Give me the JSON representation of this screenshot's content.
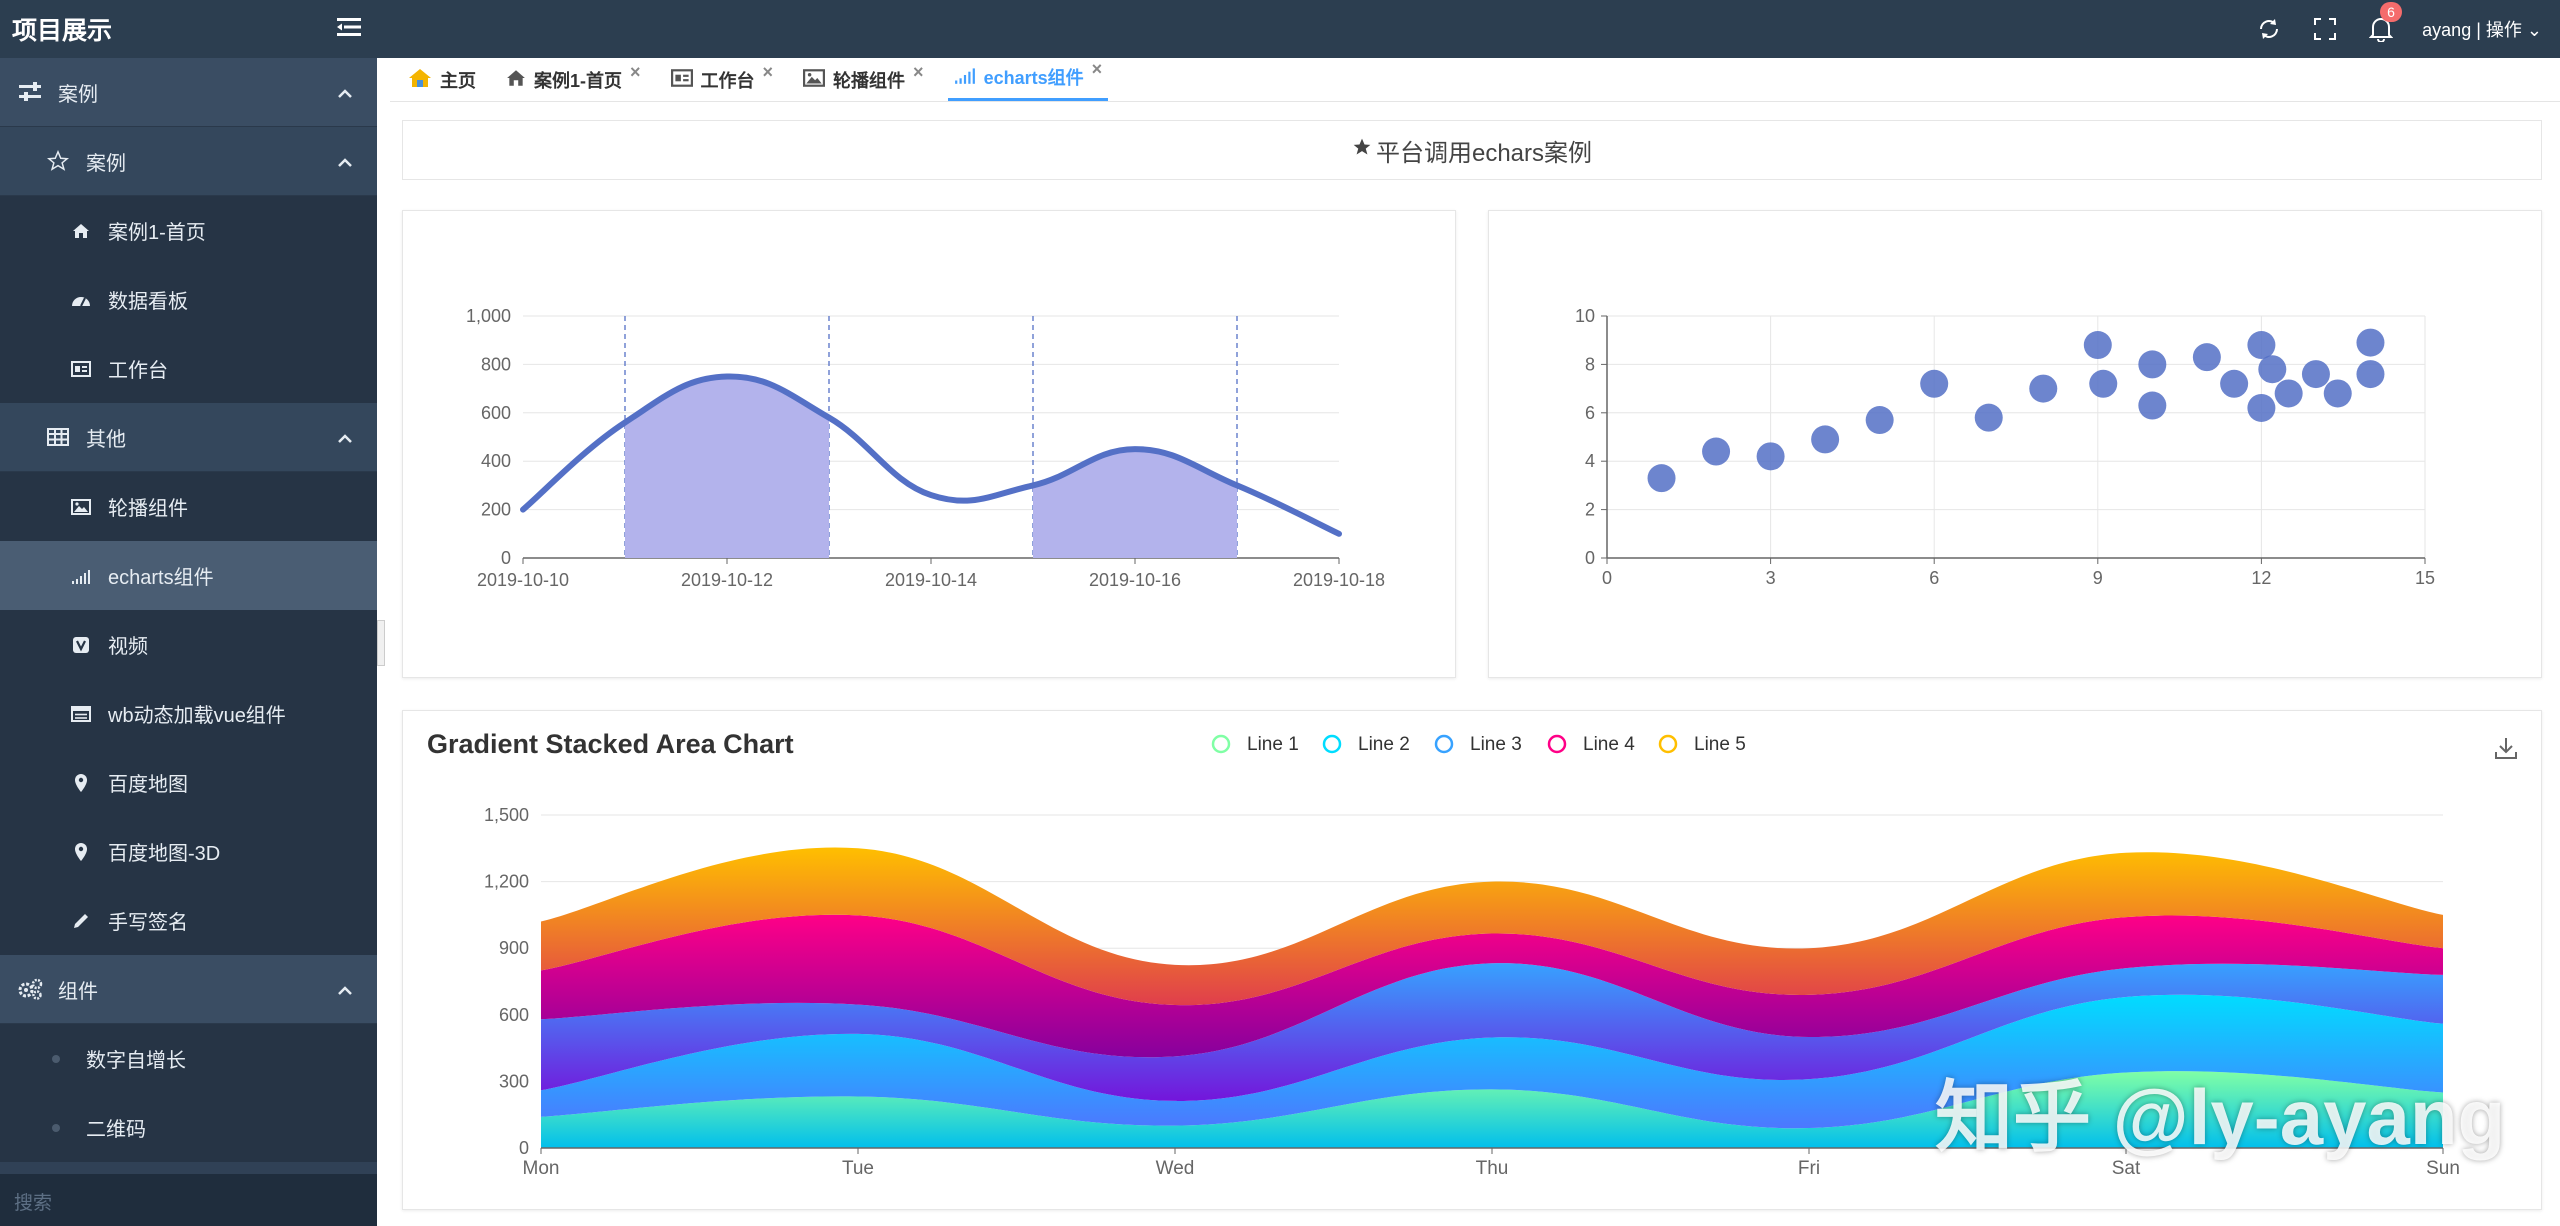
{
  "app": {
    "title": "项目展示"
  },
  "header": {
    "user_label": "ayang | 操作",
    "notification_count": "6"
  },
  "sidebar": {
    "groups": [
      {
        "label": "案例"
      },
      {
        "label": "组件"
      }
    ],
    "subgroups": [
      {
        "label": "案例"
      },
      {
        "label": "其他"
      }
    ],
    "items": [
      {
        "label": "案例1-首页"
      },
      {
        "label": "数据看板"
      },
      {
        "label": "工作台"
      },
      {
        "label": "轮播组件"
      },
      {
        "label": "echarts组件"
      },
      {
        "label": "视频"
      },
      {
        "label": "wb动态加载vue组件"
      },
      {
        "label": "百度地图"
      },
      {
        "label": "百度地图-3D"
      },
      {
        "label": "手写签名"
      },
      {
        "label": "数字自增长"
      },
      {
        "label": "二维码"
      }
    ],
    "search_placeholder": "搜索"
  },
  "tabs": [
    {
      "label": "主页"
    },
    {
      "label": "案例1-首页"
    },
    {
      "label": "工作台"
    },
    {
      "label": "轮播组件"
    },
    {
      "label": "echarts组件"
    }
  ],
  "banner": {
    "text": "平台调用echars案例"
  },
  "watermark": "知乎 @ly-ayang",
  "chart_data": [
    {
      "type": "line",
      "x": [
        "2019-10-10",
        "2019-10-11",
        "2019-10-12",
        "2019-10-13",
        "2019-10-14",
        "2019-10-15",
        "2019-10-16",
        "2019-10-17",
        "2019-10-18"
      ],
      "xticks": [
        "2019-10-10",
        "2019-10-12",
        "2019-10-14",
        "2019-10-16",
        "2019-10-18"
      ],
      "values": [
        200,
        560,
        750,
        580,
        260,
        300,
        450,
        300,
        100
      ],
      "ylim": [
        0,
        1000
      ],
      "yticks": [
        "0",
        "200",
        "400",
        "600",
        "800",
        "1,000"
      ],
      "marked_areas": [
        [
          "2019-10-11",
          "2019-10-13"
        ],
        [
          "2019-10-15",
          "2019-10-17"
        ]
      ],
      "color": "#5470c6",
      "area_color": "#b3b3ec"
    },
    {
      "type": "scatter",
      "xlim": [
        0,
        15
      ],
      "ylim": [
        0,
        10
      ],
      "xticks": [
        "0",
        "3",
        "6",
        "9",
        "12",
        "15"
      ],
      "yticks": [
        "0",
        "2",
        "4",
        "6",
        "8",
        "10"
      ],
      "points": [
        [
          1.0,
          3.3
        ],
        [
          2.0,
          4.4
        ],
        [
          3.0,
          4.2
        ],
        [
          4.0,
          4.9
        ],
        [
          5.0,
          5.7
        ],
        [
          6.0,
          7.2
        ],
        [
          7.0,
          5.8
        ],
        [
          8.0,
          7.0
        ],
        [
          9.0,
          8.8
        ],
        [
          9.1,
          7.2
        ],
        [
          10.0,
          6.3
        ],
        [
          10.0,
          8.0
        ],
        [
          11.0,
          8.3
        ],
        [
          11.5,
          7.2
        ],
        [
          12.0,
          8.8
        ],
        [
          12.0,
          6.2
        ],
        [
          12.2,
          7.8
        ],
        [
          12.5,
          6.8
        ],
        [
          13.0,
          7.6
        ],
        [
          13.4,
          6.8
        ],
        [
          14.0,
          7.6
        ],
        [
          14.0,
          8.9
        ]
      ],
      "color": "#5470c6"
    },
    {
      "type": "area",
      "title": "Gradient Stacked Area Chart",
      "categories": [
        "Mon",
        "Tue",
        "Wed",
        "Thu",
        "Fri",
        "Sat",
        "Sun"
      ],
      "yticks": [
        "0",
        "300",
        "600",
        "900",
        "1,200",
        "1,500"
      ],
      "ylim": [
        0,
        1500
      ],
      "series": [
        {
          "name": "Line 1",
          "values": [
            140,
            232,
            101,
            264,
            90,
            340,
            250
          ],
          "colors": [
            "#80ffa5",
            "#01bfec"
          ]
        },
        {
          "name": "Line 2",
          "values": [
            120,
            282,
            111,
            234,
            220,
            340,
            310
          ],
          "colors": [
            "#00ddff",
            "#4d77ff"
          ]
        },
        {
          "name": "Line 3",
          "values": [
            320,
            132,
            201,
            334,
            190,
            130,
            220
          ],
          "colors": [
            "#37a2ff",
            "#7415db"
          ]
        },
        {
          "name": "Line 4",
          "values": [
            220,
            402,
            231,
            134,
            190,
            230,
            120
          ],
          "colors": [
            "#ff0087",
            "#87009d"
          ]
        },
        {
          "name": "Line 5",
          "values": [
            220,
            302,
            181,
            234,
            210,
            290,
            150
          ],
          "colors": [
            "#ffbf00",
            "#e03e4c"
          ]
        }
      ],
      "legend_colors": [
        "#80ffa5",
        "#00ddff",
        "#37a2ff",
        "#ff0087",
        "#ffbf00"
      ]
    }
  ]
}
